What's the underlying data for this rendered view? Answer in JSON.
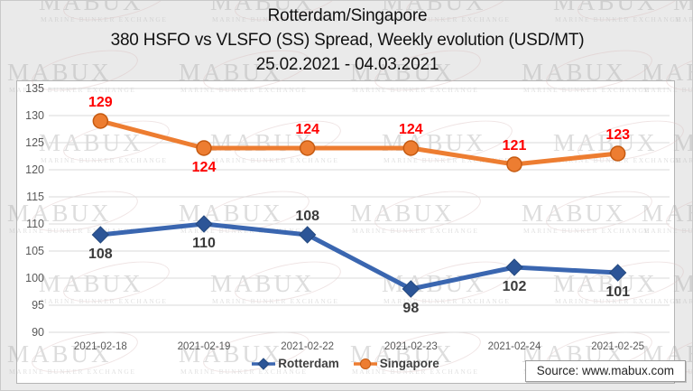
{
  "title": {
    "line1": "Rotterdam/Singapore",
    "line2": "380 HSFO vs VLSFO (SS) Spread, Weekly evolution (USD/MT)",
    "line3": "25.02.2021 - 04.03.2021"
  },
  "watermark": {
    "text": "MABUX",
    "subtext": "MARINE BUNKER EXCHANGE"
  },
  "source": {
    "label": "Source: www.mabux.com"
  },
  "colors": {
    "rotterdam_line": "#3A66B0",
    "rotterdam_marker": "#2C5597",
    "singapore_line": "#ED7D31",
    "singapore_marker_edge": "#C55A11",
    "singapore_label": "#FF0000",
    "rotterdam_label": "#3B3B3B",
    "gridline": "#D9D9D9",
    "tick_text": "#595959"
  },
  "chart_data": {
    "type": "line",
    "title": "Rotterdam/Singapore 380 HSFO vs VLSFO (SS) Spread, Weekly evolution (USD/MT) 25.02.2021 - 04.03.2021",
    "categories": [
      "2021-02-18",
      "2021-02-19",
      "2021-02-22",
      "2021-02-23",
      "2021-02-24",
      "2021-02-25"
    ],
    "series": [
      {
        "name": "Rotterdam",
        "values": [
          108,
          110,
          108,
          98,
          102,
          101
        ],
        "color": "#3A66B0",
        "marker": "diamond",
        "marker_fill": "#2C5597",
        "marker_stroke": "#24497F",
        "label_color": "#3B3B3B",
        "label_pos": [
          "below",
          "below",
          "above",
          "below",
          "below",
          "below"
        ]
      },
      {
        "name": "Singapore",
        "values": [
          129,
          124,
          124,
          124,
          121,
          123
        ],
        "color": "#ED7D31",
        "marker": "circle",
        "marker_fill": "#ED7D31",
        "marker_stroke": "#C55A11",
        "label_color": "#FF0000",
        "label_pos": [
          "above",
          "below",
          "above",
          "above",
          "above",
          "above"
        ]
      }
    ],
    "xlabel": "",
    "ylabel": "",
    "ylim": [
      90,
      135
    ],
    "ytick_step": 5,
    "grid": true,
    "legend_position": "bottom"
  }
}
